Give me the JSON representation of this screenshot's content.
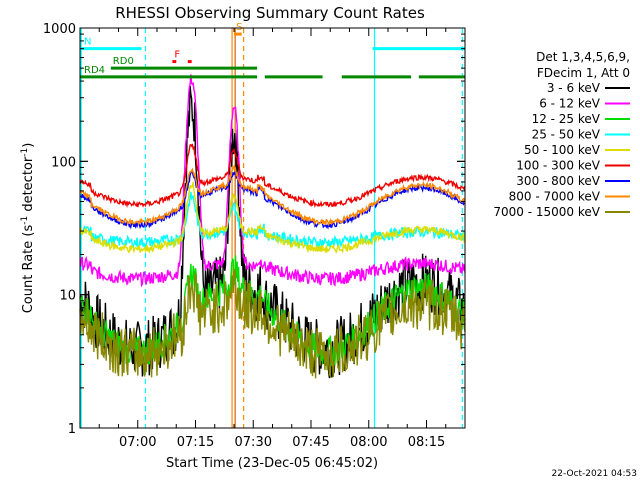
{
  "chart_data": {
    "type": "line",
    "title": "RHESSI Observing Summary Count Rates",
    "xlabel": "Start Time (23-Dec-05 06:45:02)",
    "ylabel_main": "Count Rate (s",
    "ylabel_sup1": "-1",
    "ylabel_mid": " detector",
    "ylabel_sup2": "-1",
    "ylabel_end": ")",
    "yscale": "log",
    "ylim": [
      1,
      1000
    ],
    "xlim_minutes": [
      0,
      100
    ],
    "x_ticks": [
      {
        "min": 15,
        "label": "07:00"
      },
      {
        "min": 30,
        "label": "07:15"
      },
      {
        "min": 45,
        "label": "07:30"
      },
      {
        "min": 60,
        "label": "07:45"
      },
      {
        "min": 75,
        "label": "08:00"
      },
      {
        "min": 90,
        "label": "08:15"
      }
    ],
    "y_ticks": [
      {
        "value": 1,
        "label": "1"
      },
      {
        "value": 10,
        "label": "10"
      },
      {
        "value": 100,
        "label": "100"
      },
      {
        "value": 1000,
        "label": "1000"
      }
    ],
    "legend": {
      "header1": "Det 1,3,4,5,6,9,",
      "header2": "FDecim 1, Att 0",
      "placement": "right"
    },
    "series": [
      {
        "name": "3 - 6 keV",
        "color": "#000000",
        "base": 7.0,
        "amp": 3.2,
        "noise": 0.22,
        "flare": 250
      },
      {
        "name": "6 - 12 keV",
        "color": "#ff00ff",
        "base": 15.0,
        "amp": 1.3,
        "noise": 0.05,
        "flare": 400
      },
      {
        "name": "12 - 25 keV",
        "color": "#00dd00",
        "base": 6.5,
        "amp": 3.0,
        "noise": 0.12,
        "flare": 12
      },
      {
        "name": "25 - 50 keV",
        "color": "#00ffff",
        "base": 27.0,
        "amp": 1.2,
        "noise": 0.04,
        "flare": 45
      },
      {
        "name": "50 - 100 keV",
        "color": "#dddd00",
        "base": 26.0,
        "amp": 1.4,
        "noise": 0.03,
        "flare": 70
      },
      {
        "name": "100 - 300 keV",
        "color": "#ee0000",
        "base": 60.0,
        "amp": 1.6,
        "noise": 0.02,
        "flare": 120
      },
      {
        "name": "300 - 800 keV",
        "color": "#0000ff",
        "base": 46.0,
        "amp": 1.9,
        "noise": 0.02,
        "flare": 50
      },
      {
        "name": "800 - 7000 keV",
        "color": "#ff8800",
        "base": 48.0,
        "amp": 1.9,
        "noise": 0.02,
        "flare": 60
      },
      {
        "name": "7000 - 15000 keV",
        "color": "#888800",
        "base": 5.5,
        "amp": 2.4,
        "noise": 0.2,
        "flare": 10
      }
    ],
    "flags": [
      {
        "label": "N",
        "color": "#00ffff",
        "value": 700,
        "segments": [
          [
            0,
            16
          ],
          [
            76,
            100
          ]
        ]
      },
      {
        "label": "RD0",
        "color": "#008800",
        "value": 500,
        "segments": [
          [
            8,
            46
          ]
        ]
      },
      {
        "label": "RD4",
        "color": "#008800",
        "value": 430,
        "segments": [
          [
            0,
            46
          ],
          [
            48,
            63
          ],
          [
            68,
            86
          ],
          [
            88,
            100
          ]
        ]
      },
      {
        "label": "F",
        "color": "#ff0000",
        "value": 560,
        "segments": [
          [
            24,
            25
          ],
          [
            28,
            29
          ]
        ]
      },
      {
        "label": "S",
        "color": "#ff8800",
        "value": 900,
        "segments": [
          [
            40,
            42
          ]
        ]
      }
    ],
    "vlines": [
      {
        "min": 0.3,
        "color": "#00ffff",
        "dashed": false
      },
      {
        "min": 17,
        "color": "#00ffff",
        "dashed": true
      },
      {
        "min": 39.5,
        "color": "#ff8800",
        "dashed": false
      },
      {
        "min": 40.3,
        "color": "#cc6600",
        "dashed": false
      },
      {
        "min": 42.5,
        "color": "#ff8800",
        "dashed": true
      },
      {
        "min": 76.5,
        "color": "#00ffff",
        "dashed": false
      },
      {
        "min": 99.3,
        "color": "#00ffff",
        "dashed": true
      }
    ],
    "footer_timestamp": "22-Oct-2021 04:53"
  }
}
